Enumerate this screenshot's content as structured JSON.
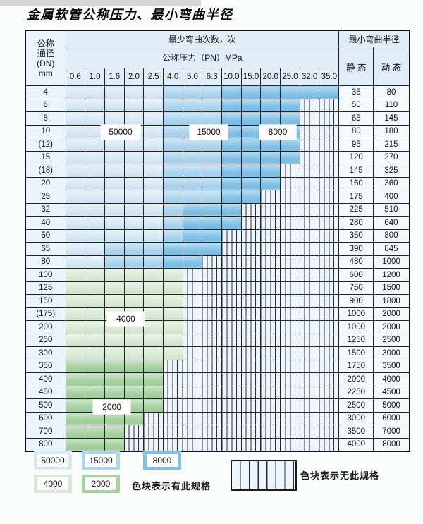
{
  "title": "金属软管公称压力、最小弯曲半径",
  "colors": {
    "b1": "#d6e9f7",
    "b2": "#abd5f0",
    "b3": "#7fc2e8",
    "g1": "#d9e9d3",
    "g2": "#a6d2a1",
    "hatch_bg": "#eef4fb",
    "line": "#232323",
    "header_bg": "#e0edf8",
    "label_bg": "#eaf4fc",
    "val_bg": "#f3f9fd"
  },
  "table": {
    "corner_line1": "公称",
    "corner_line2": "通径",
    "corner_line3": "(DN)",
    "corner_line4": "mm",
    "top_header": "最少弯曲次数，次",
    "pressure_header": "公称压力（PN）MPa",
    "radius_header": "最小弯曲半径",
    "static_header": "静 态",
    "dynamic_header": "动 态"
  },
  "region_labels": {
    "r50000": "50000",
    "r15000": "15000",
    "r8000": "8000",
    "r4000": "4000",
    "r2000": "2000"
  },
  "legend": {
    "items": [
      {
        "label": "50000",
        "code": "b1"
      },
      {
        "label": "15000",
        "code": "b2"
      },
      {
        "label": "8000",
        "code": "b3"
      },
      {
        "label": "4000",
        "code": "g1"
      },
      {
        "label": "2000",
        "code": "g2"
      }
    ],
    "available_note": "色块表示有此规格",
    "unavailable_note": "色块表示无此规格"
  },
  "chart_data": {
    "type": "heatmap",
    "title": "金属软管公称压力、最小弯曲半径",
    "xlabel": "公称压力（PN）MPa",
    "ylabel": "公称通径 (DN) mm",
    "x": [
      "0.6",
      "1.0",
      "1.6",
      "2.0",
      "2.5",
      "4.0",
      "5.0",
      "6.3",
      "10.0",
      "15.0",
      "20.0",
      "25.0",
      "32.0",
      "35.0"
    ],
    "cell_code_meaning": {
      "b1": "最少弯曲次数 50000 次",
      "b2": "最少弯曲次数 15000 次",
      "b3": "最少弯曲次数 8000 次",
      "g1": "最少弯曲次数 4000 次",
      "g2": "最少弯曲次数 2000 次",
      "h": "无此规格"
    },
    "value_columns": [
      "静态最小弯曲半径",
      "动态最小弯曲半径"
    ],
    "rows": [
      {
        "dn": "4",
        "static": "35",
        "dynamic": "80",
        "cells": [
          "b1",
          "b1",
          "b1",
          "b1",
          "b1",
          "b2",
          "b2",
          "b2",
          "b3",
          "b3",
          "b3",
          "b3",
          "b3",
          "b3"
        ]
      },
      {
        "dn": "6",
        "static": "50",
        "dynamic": "110",
        "cells": [
          "b1",
          "b1",
          "b1",
          "b1",
          "b1",
          "b2",
          "b2",
          "b2",
          "b3",
          "b3",
          "b3",
          "b3",
          "h",
          "h"
        ]
      },
      {
        "dn": "8",
        "static": "65",
        "dynamic": "145",
        "cells": [
          "b1",
          "b1",
          "b1",
          "b1",
          "b1",
          "b2",
          "b2",
          "b2",
          "b3",
          "b3",
          "b3",
          "b3",
          "h",
          "h"
        ]
      },
      {
        "dn": "10",
        "static": "80",
        "dynamic": "180",
        "cells": [
          "b1",
          "b1",
          "b1",
          "b1",
          "b1",
          "b2",
          "b2",
          "b2",
          "b3",
          "b3",
          "b3",
          "b3",
          "h",
          "h"
        ]
      },
      {
        "dn": "(12)",
        "static": "95",
        "dynamic": "215",
        "cells": [
          "b1",
          "b1",
          "b1",
          "b1",
          "b1",
          "b2",
          "b2",
          "b2",
          "b3",
          "b3",
          "b3",
          "b3",
          "h",
          "h"
        ]
      },
      {
        "dn": "15",
        "static": "120",
        "dynamic": "270",
        "cells": [
          "b1",
          "b1",
          "b1",
          "b1",
          "b1",
          "b2",
          "b2",
          "b2",
          "b3",
          "b3",
          "b3",
          "b3",
          "h",
          "h"
        ]
      },
      {
        "dn": "(18)",
        "static": "145",
        "dynamic": "325",
        "cells": [
          "b1",
          "b1",
          "b1",
          "b1",
          "b1",
          "b2",
          "b2",
          "b2",
          "b3",
          "b3",
          "b3",
          "h",
          "h",
          "h"
        ]
      },
      {
        "dn": "20",
        "static": "160",
        "dynamic": "360",
        "cells": [
          "b1",
          "b1",
          "b1",
          "b1",
          "b1",
          "b2",
          "b2",
          "b2",
          "b3",
          "b3",
          "b3",
          "h",
          "h",
          "h"
        ]
      },
      {
        "dn": "25",
        "static": "175",
        "dynamic": "400",
        "cells": [
          "b1",
          "b1",
          "b1",
          "b1",
          "b1",
          "b2",
          "b2",
          "b2",
          "b3",
          "b3",
          "h",
          "h",
          "h",
          "h"
        ]
      },
      {
        "dn": "32",
        "static": "225",
        "dynamic": "510",
        "cells": [
          "b1",
          "b1",
          "b1",
          "b1",
          "b1",
          "b2",
          "b3",
          "b3",
          "b3",
          "h",
          "h",
          "h",
          "h",
          "h"
        ]
      },
      {
        "dn": "40",
        "static": "280",
        "dynamic": "640",
        "cells": [
          "b1",
          "b1",
          "b1",
          "b1",
          "b1",
          "b2",
          "b3",
          "b3",
          "b3",
          "h",
          "h",
          "h",
          "h",
          "h"
        ]
      },
      {
        "dn": "50",
        "static": "350",
        "dynamic": "800",
        "cells": [
          "b1",
          "b1",
          "b1",
          "b1",
          "b1",
          "b2",
          "b3",
          "b3",
          "h",
          "h",
          "h",
          "h",
          "h",
          "h"
        ]
      },
      {
        "dn": "65",
        "static": "390",
        "dynamic": "845",
        "cells": [
          "b1",
          "b1",
          "b2",
          "b2",
          "b2",
          "b3",
          "b3",
          "b3",
          "h",
          "h",
          "h",
          "h",
          "h",
          "h"
        ]
      },
      {
        "dn": "80",
        "static": "480",
        "dynamic": "1000",
        "cells": [
          "b1",
          "b1",
          "b2",
          "b2",
          "b2",
          "b3",
          "b3",
          "h",
          "h",
          "h",
          "h",
          "h",
          "h",
          "h"
        ]
      },
      {
        "dn": "100",
        "static": "600",
        "dynamic": "1200",
        "cells": [
          "g1",
          "g1",
          "g1",
          "g1",
          "g1",
          "g1",
          "h",
          "h",
          "h",
          "h",
          "h",
          "h",
          "h",
          "h"
        ]
      },
      {
        "dn": "125",
        "static": "750",
        "dynamic": "1500",
        "cells": [
          "g1",
          "g1",
          "g1",
          "g1",
          "g1",
          "g1",
          "h",
          "h",
          "h",
          "h",
          "h",
          "h",
          "h",
          "h"
        ]
      },
      {
        "dn": "150",
        "static": "900",
        "dynamic": "1800",
        "cells": [
          "g1",
          "g1",
          "g1",
          "g1",
          "g1",
          "g1",
          "h",
          "h",
          "h",
          "h",
          "h",
          "h",
          "h",
          "h"
        ]
      },
      {
        "dn": "(175)",
        "static": "1000",
        "dynamic": "2000",
        "cells": [
          "g1",
          "g1",
          "g1",
          "g1",
          "g1",
          "g1",
          "h",
          "h",
          "h",
          "h",
          "h",
          "h",
          "h",
          "h"
        ]
      },
      {
        "dn": "200",
        "static": "1000",
        "dynamic": "2000",
        "cells": [
          "g1",
          "g1",
          "g1",
          "g1",
          "g1",
          "g1",
          "h",
          "h",
          "h",
          "h",
          "h",
          "h",
          "h",
          "h"
        ]
      },
      {
        "dn": "250",
        "static": "1250",
        "dynamic": "2500",
        "cells": [
          "g1",
          "g1",
          "g1",
          "g1",
          "g1",
          "g1",
          "h",
          "h",
          "h",
          "h",
          "h",
          "h",
          "h",
          "h"
        ]
      },
      {
        "dn": "300",
        "static": "1500",
        "dynamic": "3000",
        "cells": [
          "g1",
          "g1",
          "g1",
          "g1",
          "g1",
          "g1",
          "h",
          "h",
          "h",
          "h",
          "h",
          "h",
          "h",
          "h"
        ]
      },
      {
        "dn": "350",
        "static": "1750",
        "dynamic": "3500",
        "cells": [
          "g2",
          "g2",
          "g2",
          "g2",
          "g2",
          "h",
          "h",
          "h",
          "h",
          "h",
          "h",
          "h",
          "h",
          "h"
        ]
      },
      {
        "dn": "400",
        "static": "2000",
        "dynamic": "4000",
        "cells": [
          "g2",
          "g2",
          "g2",
          "g2",
          "g2",
          "h",
          "h",
          "h",
          "h",
          "h",
          "h",
          "h",
          "h",
          "h"
        ]
      },
      {
        "dn": "450",
        "static": "2250",
        "dynamic": "4500",
        "cells": [
          "g2",
          "g2",
          "g2",
          "g2",
          "g2",
          "h",
          "h",
          "h",
          "h",
          "h",
          "h",
          "h",
          "h",
          "h"
        ]
      },
      {
        "dn": "500",
        "static": "2500",
        "dynamic": "5000",
        "cells": [
          "g2",
          "g2",
          "g2",
          "g2",
          "g2",
          "h",
          "h",
          "h",
          "h",
          "h",
          "h",
          "h",
          "h",
          "h"
        ]
      },
      {
        "dn": "600",
        "static": "3000",
        "dynamic": "6000",
        "cells": [
          "g2",
          "g2",
          "g2",
          "g2",
          "h",
          "h",
          "h",
          "h",
          "h",
          "h",
          "h",
          "h",
          "h",
          "h"
        ]
      },
      {
        "dn": "700",
        "static": "3500",
        "dynamic": "7000",
        "cells": [
          "g2",
          "g2",
          "g2",
          "h",
          "h",
          "h",
          "h",
          "h",
          "h",
          "h",
          "h",
          "h",
          "h",
          "h"
        ]
      },
      {
        "dn": "800",
        "static": "4000",
        "dynamic": "8000",
        "cells": [
          "g2",
          "g2",
          "g2",
          "h",
          "h",
          "h",
          "h",
          "h",
          "h",
          "h",
          "h",
          "h",
          "h",
          "h"
        ]
      }
    ]
  }
}
